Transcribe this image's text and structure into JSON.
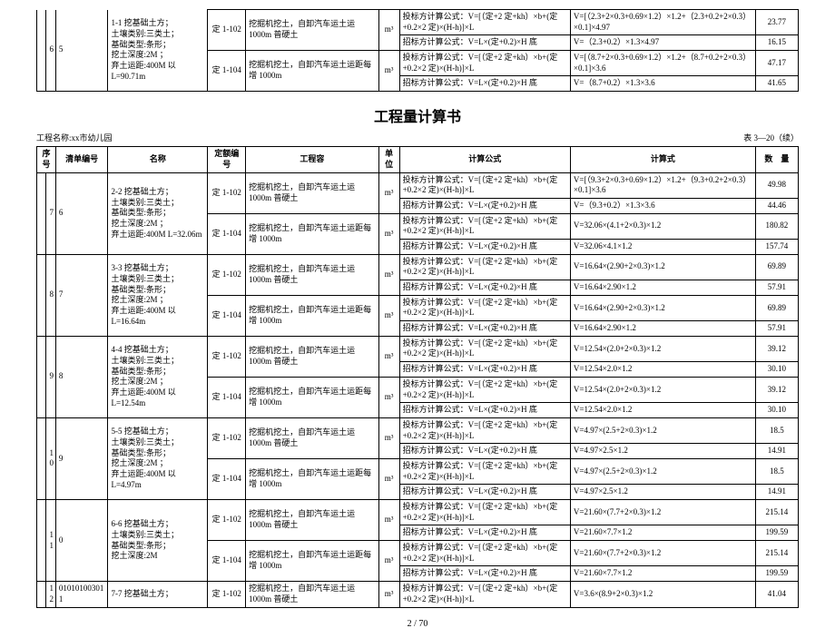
{
  "top_table": {
    "seq": "6",
    "listno": "5",
    "name_lines": "1-1 挖基础土方；\n土壤类别:三类土；\n基础类型:条形；\n挖土深度:2M ；\n弃土运距:400M 以 L=90.71m",
    "rows": [
      {
        "quota": "定 1-102",
        "content": "挖掘机挖土，自卸汽车运土运 1000m 普硬土",
        "unit": "m³",
        "formula": "投标方计算公式：V=[（定+2 定+kh）×b+(定+0.2×2 定)×(H-h)]×L",
        "calc": "V=[（2.3+2×0.3+0.69×1.2）×1.2+（2.3+0.2+2×0.3）×0.1]×4.97",
        "qty": "23.77"
      },
      {
        "quota": "",
        "content": "",
        "unit": "",
        "formula": "招标方计算公式：V=L×(定+0.2)×H 底",
        "calc": "V=（2.3+0.2）×1.3×4.97",
        "qty": "16.15"
      },
      {
        "quota": "定 1-104",
        "content": "挖掘机挖土，自卸汽车运土运距每增 1000m",
        "unit": "m³",
        "formula": "投标方计算公式：V=[（定+2 定+kh）×b+(定+0.2×2 定)×(H-h)]×L",
        "calc": "V=[（8.7+2×0.3+0.69×1.2）×1.2+（8.7+0.2+2×0.3）×0.1]×3.6",
        "qty": "47.17"
      },
      {
        "quota": "",
        "content": "",
        "unit": "",
        "formula": "招标方计算公式：V=L×(定+0.2)×H 底",
        "calc": "V=（8.7+0.2）×1.3×3.6",
        "qty": "41.65"
      }
    ]
  },
  "title": "工程量计算书",
  "project_name": "工程名称:xx市幼儿园",
  "table_no": "表 3—20（续）",
  "headers": {
    "seq": "序号",
    "listno": "清单编号",
    "name": "名称",
    "quota": "定额编号",
    "content": "工程容",
    "unit": "单位",
    "formula": "计算公式",
    "calc": "计算式",
    "qty": "数　量"
  },
  "groups": [
    {
      "seq": "7",
      "listno": "6",
      "name": "2-2 挖基础土方；\n土壤类别:三类土；\n基础类型:条形；\n挖土深度:2M ；\n弃土运距:400M L=32.06m",
      "rows": [
        {
          "quota": "定 1-102",
          "content": "挖掘机挖土，自卸汽车运土运 1000m 普硬土",
          "unit": "m³",
          "formula": "投标方计算公式：V=[（定+2 定+kh）×b+(定+0.2×2 定)×(H-h)]×L",
          "calc": "V=[（9.3+2×0.3+0.69×1.2）×1.2+（9.3+0.2+2×0.3）×0.1]×3.6",
          "qty": "49.98"
        },
        {
          "quota": "",
          "content": "",
          "unit": "",
          "formula": "招标方计算公式：V=L×(定+0.2)×H 底",
          "calc": "V=（9.3+0.2）×1.3×3.6",
          "qty": "44.46"
        },
        {
          "quota": "定 1-104",
          "content": "挖掘机挖土，自卸汽车运土运距每增 1000m",
          "unit": "m³",
          "formula": "投标方计算公式：V=[（定+2 定+kh）×b+(定+0.2×2 定)×(H-h)]×L",
          "calc": "V=32.06×(4.1+2×0.3)×1.2",
          "qty": "180.82"
        },
        {
          "quota": "",
          "content": "",
          "unit": "",
          "formula": "招标方计算公式：V=L×(定+0.2)×H 底",
          "calc": "V=32.06×4.1×1.2",
          "qty": "157.74"
        }
      ]
    },
    {
      "seq": "8",
      "listno": "7",
      "name": "3-3 挖基础土方；\n土壤类别:三类土；\n基础类型:条形；\n挖土深度:2M ；\n弃土运距:400M 以 L=16.64m",
      "rows": [
        {
          "quota": "定 1-102",
          "content": "挖掘机挖土，自卸汽车运土运 1000m 普硬土",
          "unit": "m³",
          "formula": "投标方计算公式：V=[（定+2 定+kh）×b+(定+0.2×2 定)×(H-h)]×L",
          "calc": "V=16.64×(2.90+2×0.3)×1.2",
          "qty": "69.89"
        },
        {
          "quota": "",
          "content": "",
          "unit": "",
          "formula": "招标方计算公式：V=L×(定+0.2)×H 底",
          "calc": "V=16.64×2.90×1.2",
          "qty": "57.91"
        },
        {
          "quota": "定 1-104",
          "content": "挖掘机挖土，自卸汽车运土运距每增 1000m",
          "unit": "m³",
          "formula": "投标方计算公式：V=[（定+2 定+kh）×b+(定+0.2×2 定)×(H-h)]×L",
          "calc": "V=16.64×(2.90+2×0.3)×1.2",
          "qty": "69.89"
        },
        {
          "quota": "",
          "content": "",
          "unit": "",
          "formula": "招标方计算公式：V=L×(定+0.2)×H 底",
          "calc": "V=16.64×2.90×1.2",
          "qty": "57.91"
        }
      ]
    },
    {
      "seq": "9",
      "listno": "8",
      "name": "4-4 挖基础土方；\n土壤类别:三类土；\n基础类型:条形；\n挖土深度:2M ；\n弃土运距:400M 以　L=12.54m",
      "rows": [
        {
          "quota": "定 1-102",
          "content": "挖掘机挖土，自卸汽车运土运 1000m 普硬土",
          "unit": "m³",
          "formula": "投标方计算公式：V=[（定+2 定+kh）×b+(定+0.2×2 定)×(H-h)]×L",
          "calc": "V=12.54×(2.0+2×0.3)×1.2",
          "qty": "39.12"
        },
        {
          "quota": "",
          "content": "",
          "unit": "",
          "formula": "招标方计算公式：V=L×(定+0.2)×H 底",
          "calc": "V=12.54×2.0×1.2",
          "qty": "30.10"
        },
        {
          "quota": "定 1-104",
          "content": "挖掘机挖土，自卸汽车运土运距每增 1000m",
          "unit": "m³",
          "formula": "投标方计算公式：V=[（定+2 定+kh）×b+(定+0.2×2 定)×(H-h)]×L",
          "calc": "V=12.54×(2.0+2×0.3)×1.2",
          "qty": "39.12"
        },
        {
          "quota": "",
          "content": "",
          "unit": "",
          "formula": "招标方计算公式：V=L×(定+0.2)×H 底",
          "calc": "V=12.54×2.0×1.2",
          "qty": "30.10"
        }
      ]
    },
    {
      "seq": "10",
      "listno": "9",
      "name": "5-5 挖基础土方；\n土壤类别:三类土；\n基础类型:条形；\n挖土深度:2M ；\n弃土运距:400M 以 L=4.97m",
      "rows": [
        {
          "quota": "定 1-102",
          "content": "挖掘机挖土，自卸汽车运土运 1000m 普硬土",
          "unit": "m³",
          "formula": "投标方计算公式：V=[（定+2 定+kh）×b+(定+0.2×2 定)×(H-h)]×L",
          "calc": "V=4.97×(2.5+2×0.3)×1.2",
          "qty": "18.5"
        },
        {
          "quota": "",
          "content": "",
          "unit": "",
          "formula": "招标方计算公式：V=L×(定+0.2)×H 底",
          "calc": "V=4.97×2.5×1.2",
          "qty": "14.91"
        },
        {
          "quota": "定 1-104",
          "content": "挖掘机挖土，自卸汽车运土运距每增 1000m",
          "unit": "m³",
          "formula": "投标方计算公式：V=[（定+2 定+kh）×b+(定+0.2×2 定)×(H-h)]×L",
          "calc": "V=4.97×(2.5+2×0.3)×1.2",
          "qty": "18.5"
        },
        {
          "quota": "",
          "content": "",
          "unit": "",
          "formula": "招标方计算公式：V=L×(定+0.2)×H 底",
          "calc": "V=4.97×2.5×1.2",
          "qty": "14.91"
        }
      ]
    },
    {
      "seq": "11",
      "listno": "0",
      "name": "6-6 挖基础土方；\n土壤类别:三类土；\n基础类型:条形；\n挖土深度:2M",
      "rows": [
        {
          "quota": "定 1-102",
          "content": "挖掘机挖土，自卸汽车运土运 1000m 普硬土",
          "unit": "m³",
          "formula": "投标方计算公式：V=[（定+2 定+kh）×b+(定+0.2×2 定)×(H-h)]×L",
          "calc": "V=21.60×(7.7+2×0.3)×1.2",
          "qty": "215.14"
        },
        {
          "quota": "",
          "content": "",
          "unit": "",
          "formula": "招标方计算公式：V=L×(定+0.2)×H 底",
          "calc": "V=21.60×7.7×1.2",
          "qty": "199.59"
        },
        {
          "quota": "定 1-104",
          "content": "挖掘机挖土，自卸汽车运土运距每增 1000m",
          "unit": "m³",
          "formula": "投标方计算公式：V=[（定+2 定+kh）×b+(定+0.2×2 定)×(H-h)]×L",
          "calc": "V=21.60×(7.7+2×0.3)×1.2",
          "qty": "215.14"
        },
        {
          "quota": "",
          "content": "",
          "unit": "",
          "formula": "招标方计算公式：V=L×(定+0.2)×H 底",
          "calc": "V=21.60×7.7×1.2",
          "qty": "199.59"
        }
      ]
    }
  ],
  "last_row": {
    "seq": "12",
    "listno": "010101003011",
    "name": "7-7 挖基础土方；",
    "quota": "定 1-102",
    "content": "挖掘机挖土，自卸汽车运土运 1000m 普硬土",
    "unit": "m³",
    "formula": "投标方计算公式：V=[（定+2 定+kh）×b+(定+0.2×2 定)×(H-h)]×L",
    "calc": "V=3.6×(8.9+2×0.3)×1.2",
    "qty": "41.04"
  },
  "page_num": "2 / 70"
}
